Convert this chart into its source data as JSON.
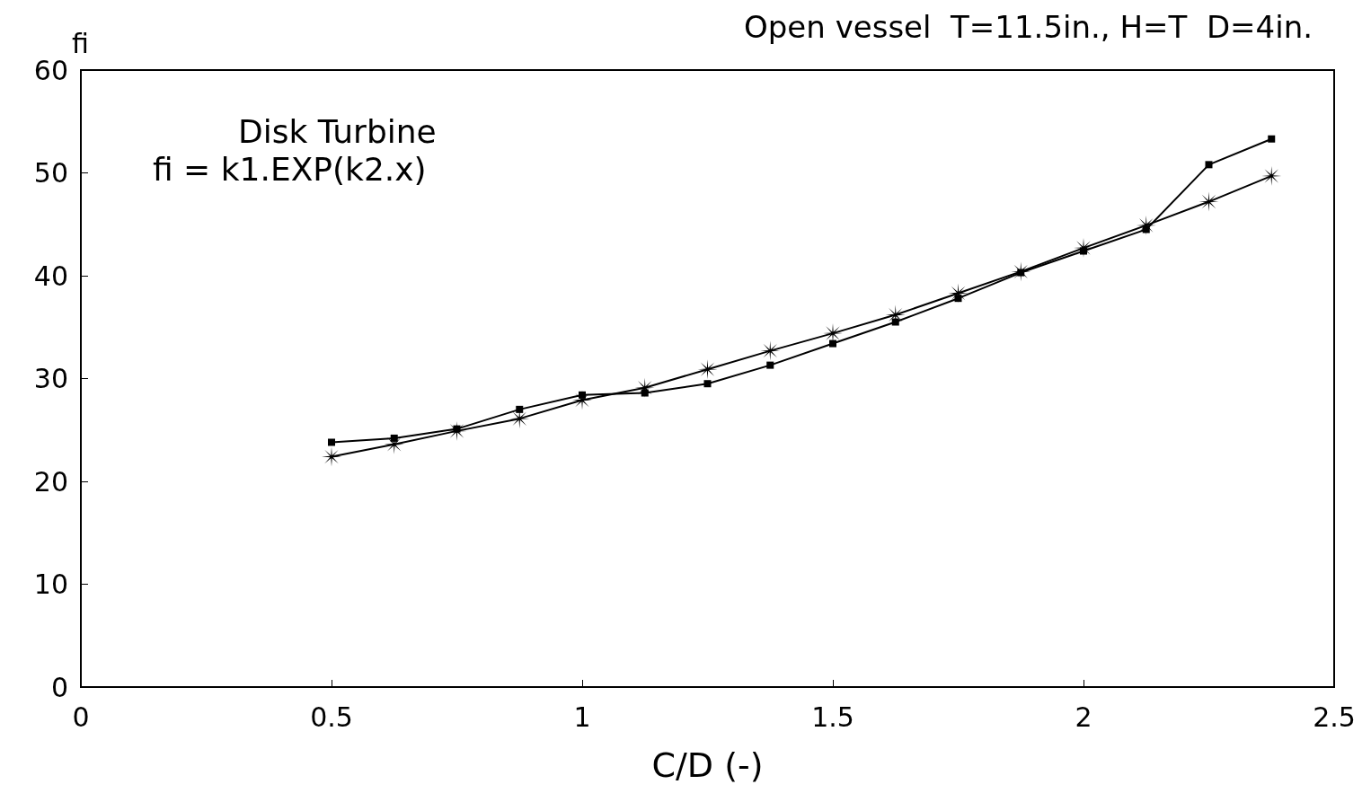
{
  "chart_data": {
    "type": "line",
    "title": "Open vessel  T=11.5in., H=T  D=4in.",
    "xlabel": "C/D (-)",
    "ylabel": "fi",
    "annotations": [
      "Disk Turbine",
      "fi = k1.EXP(k2.x)"
    ],
    "x": [
      0.5,
      0.625,
      0.75,
      0.875,
      1.0,
      1.125,
      1.25,
      1.375,
      1.5,
      1.625,
      1.75,
      1.875,
      2.0,
      2.125,
      2.25,
      2.375
    ],
    "series": [
      {
        "color": "#000000",
        "marker": "square",
        "values": [
          23.8,
          24.2,
          25.1,
          27.0,
          28.4,
          28.6,
          29.5,
          31.3,
          33.4,
          35.5,
          37.8,
          40.3,
          42.4,
          44.5,
          50.8,
          53.3
        ]
      },
      {
        "color": "#000000",
        "marker": "star",
        "values": [
          22.4,
          23.6,
          24.9,
          26.1,
          27.9,
          29.1,
          30.9,
          32.7,
          34.4,
          36.2,
          38.3,
          40.4,
          42.7,
          44.9,
          47.2,
          49.7
        ]
      }
    ],
    "xlim": [
      0,
      2.5
    ],
    "xticks": [
      0,
      0.5,
      1,
      1.5,
      2,
      2.5
    ],
    "ylim": [
      0,
      60
    ],
    "yticks": [
      0,
      10,
      20,
      30,
      40,
      50,
      60
    ],
    "grid": false,
    "line_style": "solid"
  }
}
